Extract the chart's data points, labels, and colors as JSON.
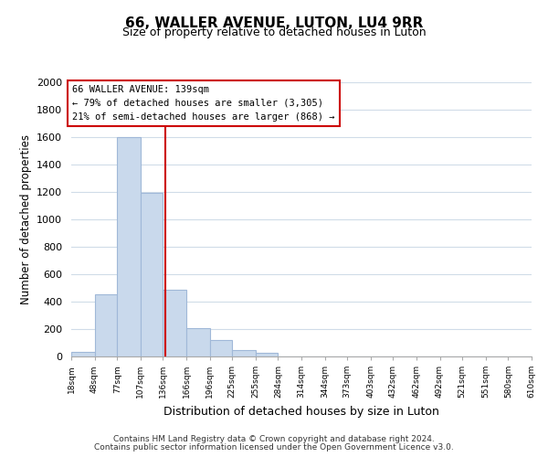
{
  "title": "66, WALLER AVENUE, LUTON, LU4 9RR",
  "subtitle": "Size of property relative to detached houses in Luton",
  "xlabel": "Distribution of detached houses by size in Luton",
  "ylabel": "Number of detached properties",
  "bin_edges": [
    18,
    48,
    77,
    107,
    136,
    166,
    196,
    225,
    255,
    284,
    314,
    344,
    373,
    403,
    432,
    462,
    492,
    521,
    551,
    580,
    610
  ],
  "bar_heights": [
    35,
    455,
    1600,
    1195,
    485,
    210,
    120,
    50,
    30,
    0,
    0,
    0,
    0,
    0,
    0,
    0,
    0,
    0,
    0,
    0
  ],
  "bar_color": "#c9d9ec",
  "bar_edge_color": "#a0b8d8",
  "property_size": 139,
  "vline_color": "#cc0000",
  "annotation_title": "66 WALLER AVENUE: 139sqm",
  "annotation_line1": "← 79% of detached houses are smaller (3,305)",
  "annotation_line2": "21% of semi-detached houses are larger (868) →",
  "annotation_box_color": "#cc0000",
  "ylim": [
    0,
    2000
  ],
  "yticks": [
    0,
    200,
    400,
    600,
    800,
    1000,
    1200,
    1400,
    1600,
    1800,
    2000
  ],
  "tick_labels": [
    "18sqm",
    "48sqm",
    "77sqm",
    "107sqm",
    "136sqm",
    "166sqm",
    "196sqm",
    "225sqm",
    "255sqm",
    "284sqm",
    "314sqm",
    "344sqm",
    "373sqm",
    "403sqm",
    "432sqm",
    "462sqm",
    "492sqm",
    "521sqm",
    "551sqm",
    "580sqm",
    "610sqm"
  ],
  "footer_line1": "Contains HM Land Registry data © Crown copyright and database right 2024.",
  "footer_line2": "Contains public sector information licensed under the Open Government Licence v3.0.",
  "bg_color": "#ffffff",
  "grid_color": "#d0dce8"
}
